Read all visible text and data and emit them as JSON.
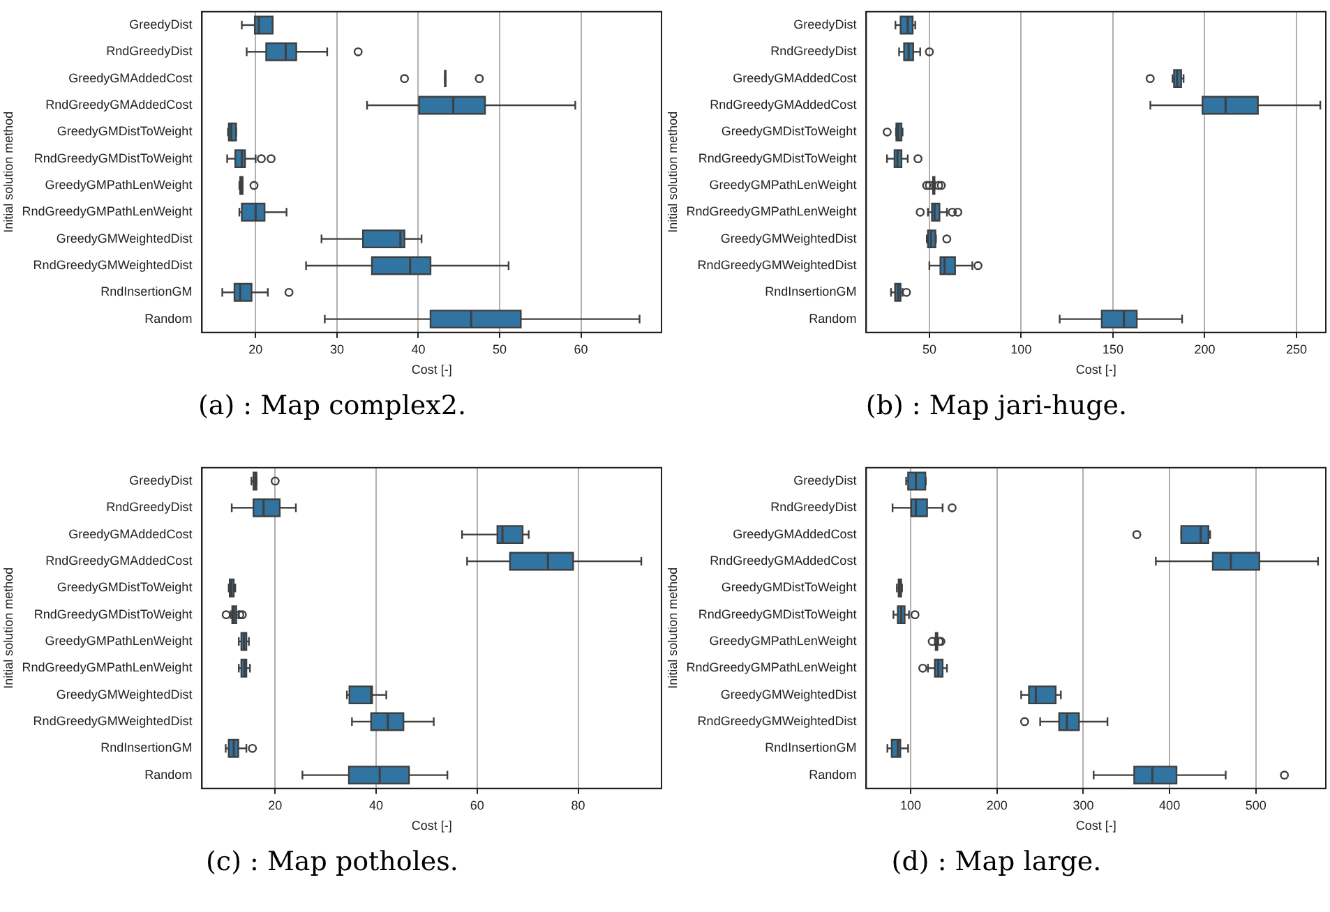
{
  "chart_data": [
    {
      "type": "box",
      "title": "(a) : Map complex2.",
      "xlabel": "Cost [-]",
      "ylabel": "Initial solution method",
      "orientation": "horizontal",
      "color": "#3274a1",
      "grid": "x",
      "xlim": [
        13.4,
        69.9
      ],
      "xticks": [
        20,
        30,
        40,
        50,
        60
      ],
      "categories": [
        "GreedyDist",
        "RndGreedyDist",
        "GreedyGMAddedCost",
        "RndGreedyGMAddedCost",
        "GreedyGMDistToWeight",
        "RndGreedyGMDistToWeight",
        "GreedyGMPathLenWeight",
        "RndGreedyGMPathLenWeight",
        "GreedyGMWeightedDist",
        "RndGreedyGMWeightedDist",
        "RndInsertionGM",
        "Random"
      ],
      "boxes": [
        {
          "low": 18.3,
          "q1": 19.9,
          "median": 20.4,
          "q3": 22.1,
          "high": 22.1
        },
        {
          "low": 18.9,
          "q1": 21.3,
          "median": 23.7,
          "q3": 25.0,
          "high": 28.8,
          "outliers": [
            32.6
          ]
        },
        {
          "low": 43.3,
          "q1": 43.3,
          "median": 43.3,
          "q3": 43.3,
          "high": 43.3,
          "outliers": [
            38.3,
            47.5
          ]
        },
        {
          "low": 33.7,
          "q1": 40.1,
          "median": 44.3,
          "q3": 48.2,
          "high": 59.3
        },
        {
          "low": 16.6,
          "q1": 16.7,
          "median": 17.0,
          "q3": 17.6,
          "high": 17.6
        },
        {
          "low": 16.5,
          "q1": 17.5,
          "median": 18.3,
          "q3": 18.7,
          "high": 20.0,
          "outliers": [
            20.7,
            21.9
          ]
        },
        {
          "low": 18.0,
          "q1": 18.1,
          "median": 18.3,
          "q3": 18.4,
          "high": 18.4,
          "outliers": [
            19.8
          ]
        },
        {
          "low": 18.0,
          "q1": 18.3,
          "median": 20.0,
          "q3": 21.1,
          "high": 23.8
        },
        {
          "low": 28.1,
          "q1": 33.2,
          "median": 37.8,
          "q3": 38.3,
          "high": 40.4
        },
        {
          "low": 26.2,
          "q1": 34.3,
          "median": 39.0,
          "q3": 41.5,
          "high": 51.1
        },
        {
          "low": 15.9,
          "q1": 17.4,
          "median": 18.1,
          "q3": 19.5,
          "high": 21.5,
          "outliers": [
            24.1
          ]
        },
        {
          "low": 28.5,
          "q1": 41.5,
          "median": 46.5,
          "q3": 52.6,
          "high": 67.2
        }
      ]
    },
    {
      "type": "box",
      "title": "(b) : Map jari-huge.",
      "xlabel": "Cost [-]",
      "ylabel": "Initial solution method",
      "orientation": "horizontal",
      "color": "#3274a1",
      "grid": "x",
      "xlim": [
        15.6,
        266
      ],
      "xticks": [
        50,
        100,
        150,
        200,
        250
      ],
      "categories": [
        "GreedyDist",
        "RndGreedyDist",
        "GreedyGMAddedCost",
        "RndGreedyGMAddedCost",
        "GreedyGMDistToWeight",
        "RndGreedyGMDistToWeight",
        "GreedyGMPathLenWeight",
        "RndGreedyGMPathLenWeight",
        "GreedyGMWeightedDist",
        "RndGreedyGMWeightedDist",
        "RndInsertionGM",
        "Random"
      ],
      "boxes": [
        {
          "low": 31.5,
          "q1": 34.3,
          "median": 38.2,
          "q3": 40.9,
          "high": 42.3
        },
        {
          "low": 33.5,
          "q1": 36.2,
          "median": 38.7,
          "q3": 41.2,
          "high": 45,
          "outliers": [
            50
          ]
        },
        {
          "low": 182.5,
          "q1": 183.3,
          "median": 185,
          "q3": 187.2,
          "high": 188.5,
          "outliers": [
            170.3
          ]
        },
        {
          "low": 170.4,
          "q1": 198.8,
          "median": 211.4,
          "q3": 229,
          "high": 263
        },
        {
          "low": 31.8,
          "q1": 32,
          "median": 33,
          "q3": 34.8,
          "high": 35.4,
          "outliers": [
            27
          ]
        },
        {
          "low": 26.9,
          "q1": 31,
          "median": 32.6,
          "q3": 34.8,
          "high": 38.2,
          "outliers": [
            43.8
          ]
        },
        {
          "low": 51.5,
          "q1": 52,
          "median": 52.4,
          "q3": 52.8,
          "high": 53,
          "outliers": [
            48.5,
            50,
            55,
            56.5
          ]
        },
        {
          "low": 49.2,
          "q1": 51.4,
          "median": 52.8,
          "q3": 55.5,
          "high": 59.6,
          "outliers": [
            45,
            62.5,
            65.5
          ]
        },
        {
          "low": 48.6,
          "q1": 49.2,
          "median": 50.8,
          "q3": 53.3,
          "high": 53.6,
          "outliers": [
            59.5
          ]
        },
        {
          "low": 50,
          "q1": 56,
          "median": 58.3,
          "q3": 64,
          "high": 73.4,
          "outliers": [
            76.5
          ]
        },
        {
          "low": 29.1,
          "q1": 31.3,
          "median": 33,
          "q3": 34.3,
          "high": 35.4,
          "outliers": [
            37.5
          ]
        },
        {
          "low": 121,
          "q1": 143.9,
          "median": 156,
          "q3": 163,
          "high": 187.7
        }
      ]
    },
    {
      "type": "box",
      "title": "(c) : Map potholes.",
      "xlabel": "Cost [-]",
      "ylabel": "Initial solution method",
      "orientation": "horizontal",
      "color": "#3274a1",
      "grid": "x",
      "xlim": [
        5.5,
        96.5
      ],
      "xticks": [
        20,
        40,
        60,
        80
      ],
      "categories": [
        "GreedyDist",
        "RndGreedyDist",
        "GreedyGMAddedCost",
        "RndGreedyGMAddedCost",
        "GreedyGMDistToWeight",
        "RndGreedyGMDistToWeight",
        "GreedyGMPathLenWeight",
        "RndGreedyGMPathLenWeight",
        "GreedyGMWeightedDist",
        "RndGreedyGMWeightedDist",
        "RndInsertionGM",
        "Random"
      ],
      "boxes": [
        {
          "low": 15.3,
          "q1": 15.7,
          "median": 16.1,
          "q3": 16.3,
          "high": 16.3,
          "outliers": [
            20
          ]
        },
        {
          "low": 11.4,
          "q1": 15.7,
          "median": 17.7,
          "q3": 20.9,
          "high": 24.1
        },
        {
          "low": 57,
          "q1": 64,
          "median": 65,
          "q3": 69,
          "high": 70.2
        },
        {
          "low": 58,
          "q1": 66.5,
          "median": 74,
          "q3": 79,
          "high": 92.5
        },
        {
          "low": 10.8,
          "q1": 11,
          "median": 11.3,
          "q3": 11.8,
          "high": 12.1
        },
        {
          "low": 11.2,
          "q1": 11.5,
          "median": 11.8,
          "q3": 12.3,
          "high": 12.8,
          "outliers": [
            10.3,
            13,
            13.5
          ]
        },
        {
          "low": 12.8,
          "q1": 13.3,
          "median": 13.8,
          "q3": 14.3,
          "high": 14.8
        },
        {
          "low": 12.8,
          "q1": 13.3,
          "median": 13.9,
          "q3": 14.3,
          "high": 15
        },
        {
          "low": 34.2,
          "q1": 34.7,
          "median": 39,
          "q3": 39.2,
          "high": 42
        },
        {
          "low": 35.2,
          "q1": 39,
          "median": 42.3,
          "q3": 45.4,
          "high": 51.4
        },
        {
          "low": 10.2,
          "q1": 10.8,
          "median": 11.8,
          "q3": 12.7,
          "high": 14.3,
          "outliers": [
            15.5
          ]
        },
        {
          "low": 25.4,
          "q1": 34.6,
          "median": 40.7,
          "q3": 46.5,
          "high": 54.1
        }
      ]
    },
    {
      "type": "box",
      "title": "(d) : Map large.",
      "xlabel": "Cost [-]",
      "ylabel": "Initial solution method",
      "orientation": "horizontal",
      "color": "#3274a1",
      "grid": "x",
      "xlim": [
        48.5,
        581
      ],
      "xticks": [
        100,
        200,
        300,
        400,
        500
      ],
      "categories": [
        "GreedyDist",
        "RndGreedyDist",
        "GreedyGMAddedCost",
        "RndGreedyGMAddedCost",
        "GreedyGMDistToWeight",
        "RndGreedyGMDistToWeight",
        "GreedyGMPathLenWeight",
        "RndGreedyGMPathLenWeight",
        "GreedyGMWeightedDist",
        "RndGreedyGMWeightedDist",
        "RndInsertionGM",
        "Random"
      ],
      "boxes": [
        {
          "low": 94.7,
          "q1": 97,
          "median": 106,
          "q3": 117,
          "high": 117.5
        },
        {
          "low": 79,
          "q1": 100.6,
          "median": 106,
          "q3": 119,
          "high": 137,
          "outliers": [
            148
          ]
        },
        {
          "low": 413.5,
          "q1": 413.5,
          "median": 436,
          "q3": 445,
          "high": 447,
          "outliers": [
            362
          ]
        },
        {
          "low": 384,
          "q1": 450,
          "median": 471,
          "q3": 504,
          "high": 572
        },
        {
          "low": 84,
          "q1": 86,
          "median": 87,
          "q3": 89,
          "high": 90
        },
        {
          "low": 80,
          "q1": 85,
          "median": 89,
          "q3": 93,
          "high": 98,
          "outliers": [
            105
          ]
        },
        {
          "low": 128,
          "q1": 129,
          "median": 130,
          "q3": 131,
          "high": 132,
          "outliers": [
            125,
            133,
            135
          ]
        },
        {
          "low": 120,
          "q1": 128,
          "median": 132,
          "q3": 137,
          "high": 142,
          "outliers": [
            114
          ]
        },
        {
          "low": 228,
          "q1": 237,
          "median": 245,
          "q3": 268,
          "high": 274
        },
        {
          "low": 250,
          "q1": 272,
          "median": 281,
          "q3": 295,
          "high": 328,
          "outliers": [
            232
          ]
        },
        {
          "low": 73,
          "q1": 78,
          "median": 85,
          "q3": 88,
          "high": 97
        },
        {
          "low": 312,
          "q1": 359,
          "median": 380,
          "q3": 408,
          "high": 465,
          "outliers": [
            533
          ]
        }
      ]
    }
  ]
}
